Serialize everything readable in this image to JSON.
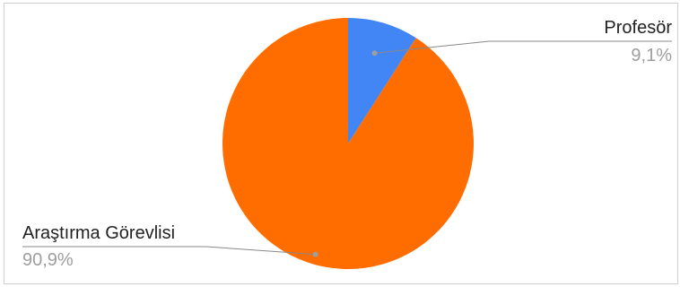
{
  "chart_data": {
    "type": "pie",
    "slices": [
      {
        "label": "Profesör",
        "value": 9.1,
        "value_label": "9,1%",
        "color": "#4285f4"
      },
      {
        "label": "Araştırma Görevlisi",
        "value": 90.9,
        "value_label": "90,9%",
        "color": "#ff6d00"
      }
    ],
    "start_angle_deg": 0,
    "direction": "clockwise",
    "legend": "none",
    "labels": "outside-with-leader-lines",
    "leader_color": "#888888"
  }
}
